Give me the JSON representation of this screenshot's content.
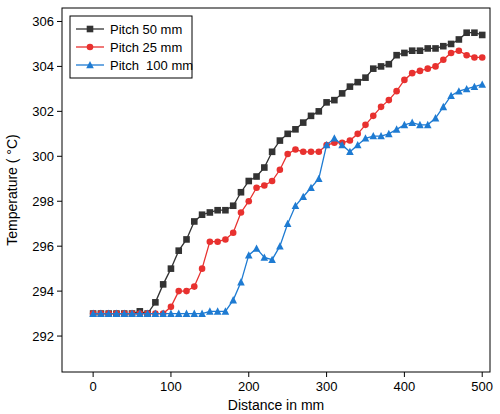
{
  "chart_data": {
    "type": "line",
    "x_label": "Distance in mm",
    "y_label": "Temperature ( °C)",
    "x": [
      0,
      10,
      20,
      30,
      40,
      50,
      60,
      70,
      80,
      90,
      100,
      110,
      120,
      130,
      140,
      150,
      160,
      170,
      180,
      190,
      200,
      210,
      220,
      230,
      240,
      250,
      260,
      270,
      280,
      290,
      300,
      310,
      320,
      330,
      340,
      350,
      360,
      370,
      380,
      390,
      400,
      410,
      420,
      430,
      440,
      450,
      460,
      470,
      480,
      490,
      500
    ],
    "series": [
      {
        "name": "Pitch 50 mm",
        "color": "#333333",
        "marker": "square",
        "values": [
          293,
          293,
          293,
          293,
          293,
          293,
          293.1,
          293,
          293.5,
          294.3,
          295.0,
          295.8,
          296.3,
          297.1,
          297.4,
          297.5,
          297.6,
          297.6,
          297.8,
          298.4,
          298.9,
          299.1,
          299.5,
          300.2,
          300.7,
          301.0,
          301.2,
          301.5,
          301.8,
          302.0,
          302.4,
          302.5,
          302.8,
          303.1,
          303.3,
          303.5,
          303.9,
          304.0,
          304.1,
          304.5,
          304.6,
          304.7,
          304.7,
          304.8,
          304.8,
          304.9,
          305.0,
          305.2,
          305.5,
          305.5,
          305.4
        ]
      },
      {
        "name": "Pitch 25 mm",
        "color": "#e8312f",
        "marker": "circle",
        "values": [
          293,
          293,
          293,
          293,
          293,
          293,
          293,
          293,
          293,
          293,
          293.3,
          294.0,
          294.0,
          294.2,
          295.0,
          296.2,
          296.2,
          296.3,
          296.6,
          297.5,
          298.0,
          298.6,
          298.7,
          298.9,
          299.4,
          300.1,
          300.3,
          300.2,
          300.2,
          300.2,
          300.5,
          300.6,
          300.6,
          300.7,
          301.0,
          301.4,
          301.8,
          302.2,
          302.5,
          302.9,
          303.4,
          303.7,
          303.8,
          303.9,
          304.0,
          304.3,
          304.6,
          304.7,
          304.5,
          304.4,
          304.4
        ]
      },
      {
        "name": "Pitch  100 mm",
        "color": "#1e7bd2",
        "marker": "triangle",
        "values": [
          293,
          293,
          293,
          293,
          293,
          293,
          293,
          293,
          293,
          293,
          293,
          293,
          293,
          293,
          293,
          293.1,
          293.1,
          293.1,
          293.6,
          294.4,
          295.6,
          295.9,
          295.5,
          295.4,
          296.0,
          297.0,
          297.8,
          298.2,
          298.6,
          299.0,
          300.5,
          300.8,
          300.5,
          300.2,
          300.5,
          300.8,
          300.9,
          300.9,
          301.0,
          301.2,
          301.4,
          301.5,
          301.4,
          301.4,
          301.7,
          302.2,
          302.7,
          302.9,
          303.0,
          303.1,
          303.2
        ]
      }
    ],
    "xlim": [
      -40,
      510
    ],
    "xticks": [
      0,
      100,
      200,
      300,
      400,
      500
    ],
    "ylim": [
      290.4,
      306.6
    ],
    "yticks": [
      292,
      294,
      296,
      298,
      300,
      302,
      304,
      306
    ],
    "legend": "upper left",
    "grid": false
  }
}
